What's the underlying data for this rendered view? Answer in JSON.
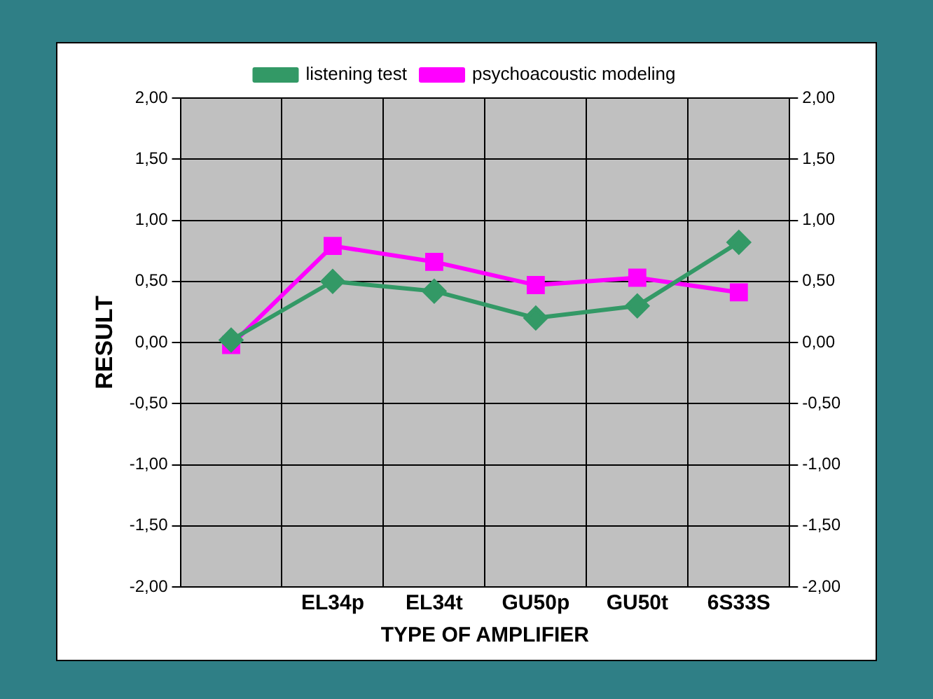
{
  "chart_data": {
    "type": "line",
    "xlabel": "TYPE OF AMPLIFIER",
    "ylabel": "RESULT",
    "categories": [
      null,
      "EL34p",
      "EL34t",
      "GU50p",
      "GU50t",
      "6S33S"
    ],
    "series": [
      {
        "name": "psychoacoustic modeling",
        "color": "#ff00ff",
        "marker": "square",
        "values": [
          -0.02,
          0.79,
          0.66,
          0.47,
          0.53,
          0.41
        ]
      },
      {
        "name": "listening test",
        "color": "#339966",
        "marker": "diamond",
        "values": [
          0.02,
          0.5,
          0.42,
          0.2,
          0.3,
          0.82
        ]
      }
    ],
    "ylim": [
      -2,
      2
    ],
    "yticks": [
      {
        "value": -2,
        "label": "-2,00"
      },
      {
        "value": -1.5,
        "label": "-1,50"
      },
      {
        "value": -1,
        "label": "-1,00"
      },
      {
        "value": -0.5,
        "label": "-0,50"
      },
      {
        "value": 0,
        "label": "0,00"
      },
      {
        "value": 0.5,
        "label": "0,50"
      },
      {
        "value": 1,
        "label": "1,00"
      },
      {
        "value": 1.5,
        "label": "1,50"
      },
      {
        "value": 2,
        "label": "2,00"
      }
    ],
    "y2lim": [
      -2,
      2
    ],
    "y2ticks": [
      {
        "value": -2,
        "label": "-2,00"
      },
      {
        "value": -1.5,
        "label": "-1,50"
      },
      {
        "value": -1,
        "label": "-1,00"
      },
      {
        "value": -0.5,
        "label": "-0,50"
      },
      {
        "value": 0,
        "label": "0,00"
      },
      {
        "value": 0.5,
        "label": "0,50"
      },
      {
        "value": 1,
        "label": "1,00"
      },
      {
        "value": 1.5,
        "label": "1,50"
      },
      {
        "value": 2,
        "label": "2,00"
      }
    ],
    "grid": true,
    "legend": "top",
    "line_style": "solid"
  }
}
